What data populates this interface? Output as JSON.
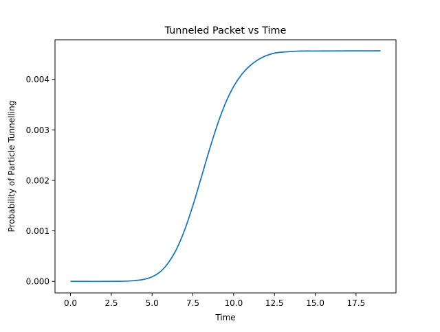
{
  "chart_data": {
    "type": "line",
    "title": "Tunneled Packet vs Time",
    "xlabel": "Time",
    "ylabel": "Probability of Particle Tunnelling",
    "xlim": [
      -0.95,
      19.95
    ],
    "ylim": [
      -0.000228,
      0.004784
    ],
    "xticks": [
      0.0,
      2.5,
      5.0,
      7.5,
      10.0,
      12.5,
      15.0,
      17.5
    ],
    "xtick_labels": [
      "0.0",
      "2.5",
      "5.0",
      "7.5",
      "10.0",
      "12.5",
      "15.0",
      "17.5"
    ],
    "yticks": [
      0.0,
      0.001,
      0.002,
      0.003,
      0.004
    ],
    "ytick_labels": [
      "0.000",
      "0.001",
      "0.002",
      "0.003",
      "0.004"
    ],
    "grid": false,
    "legend": "none",
    "series": [
      {
        "color": "#1f77b4",
        "x": [
          0.0,
          1.0,
          2.0,
          3.0,
          3.5,
          4.0,
          4.5,
          5.0,
          5.5,
          6.0,
          6.5,
          7.0,
          7.5,
          8.0,
          8.5,
          9.0,
          9.5,
          10.0,
          10.5,
          11.0,
          11.5,
          12.0,
          12.5,
          13.0,
          14.0,
          15.0,
          16.0,
          17.0,
          18.0,
          19.0
        ],
        "y": [
          0.0,
          0.0,
          0.0,
          2e-06,
          6e-06,
          1.8e-05,
          4e-05,
          9e-05,
          0.00019,
          0.00037,
          0.00064,
          0.00102,
          0.0015,
          0.00204,
          0.00259,
          0.0031,
          0.00353,
          0.00386,
          0.0041,
          0.00427,
          0.00439,
          0.00447,
          0.00452,
          0.00454,
          0.00456,
          0.004562,
          0.004563,
          0.004564,
          0.004565,
          0.004566
        ]
      }
    ]
  }
}
